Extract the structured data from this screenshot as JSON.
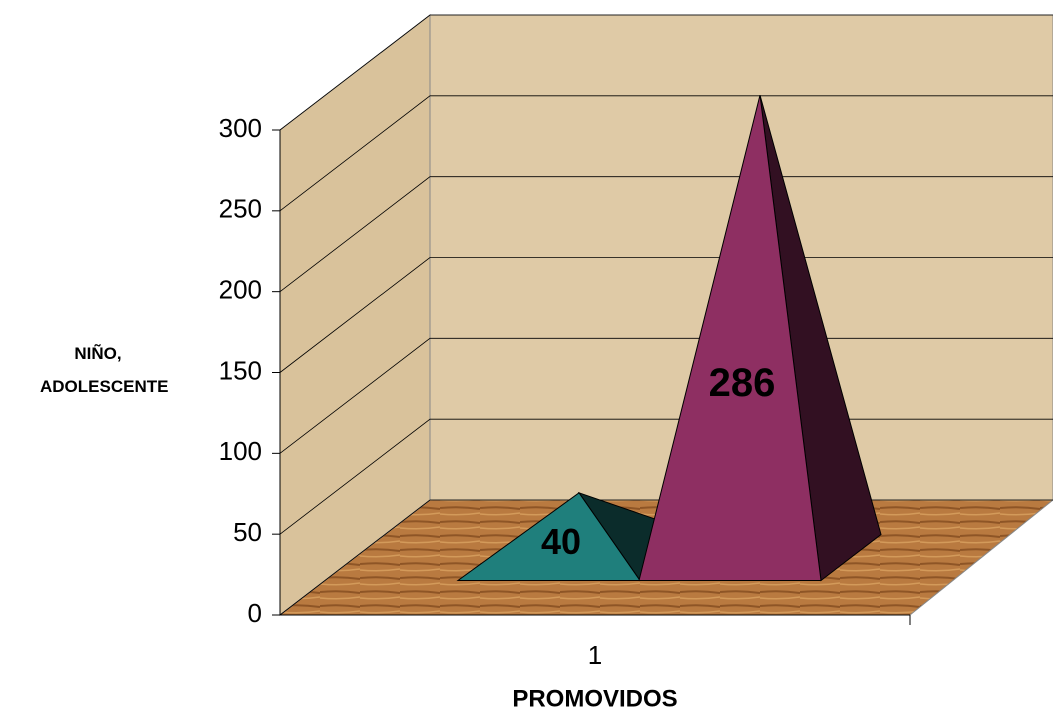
{
  "chart_data": {
    "type": "pyramid3d",
    "y_label": "NIÑO, ADOLESCENTE",
    "x_label": "PROMOVIDOS",
    "categories": [
      "1"
    ],
    "series": [
      {
        "color": "#1f7f7c",
        "values": [
          40
        ]
      },
      {
        "color": "#8e2f62",
        "values": [
          286
        ]
      }
    ],
    "ylim": [
      0,
      300
    ],
    "yticks": [
      0,
      50,
      100,
      150,
      200,
      250,
      300
    ],
    "grid": true
  }
}
